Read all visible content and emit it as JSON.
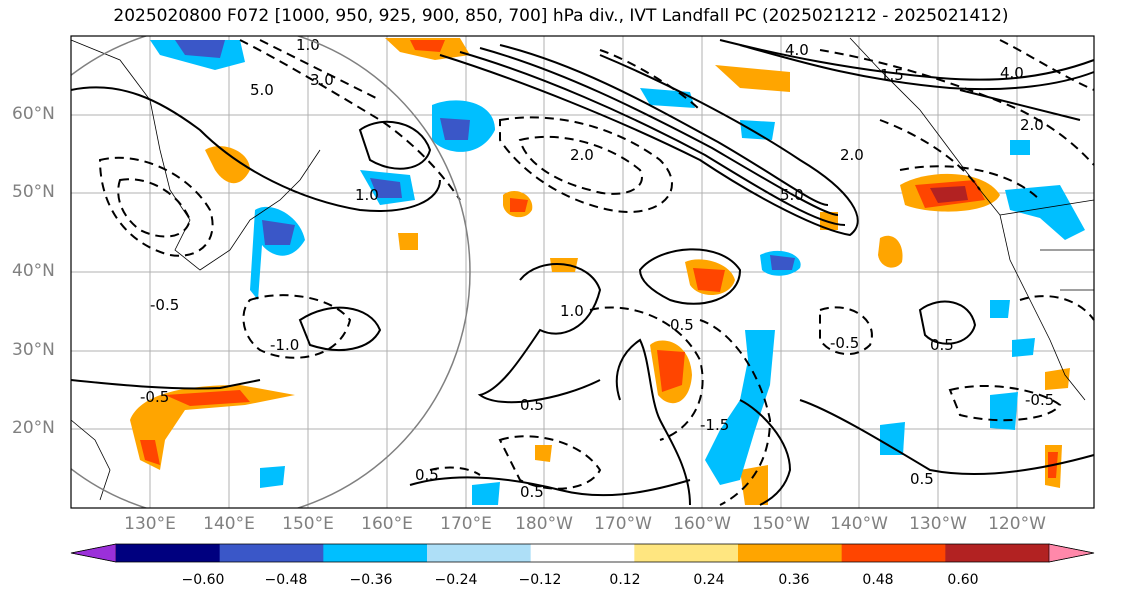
{
  "title": "2025020800 F072 [1000, 950, 925, 900, 850, 700] hPa div., IVT Landfall PC (2025021212 - 2025021412)",
  "map": {
    "lat_labels": [
      "60°N",
      "50°N",
      "40°N",
      "30°N",
      "20°N"
    ],
    "lon_labels": [
      "130°E",
      "140°E",
      "150°E",
      "160°E",
      "170°E",
      "180°W",
      "170°W",
      "160°W",
      "150°W",
      "140°W",
      "130°W",
      "120°W"
    ],
    "projection_extent": {
      "lon_range": [
        "120°E",
        "250°E"
      ],
      "lat_range": [
        10,
        70
      ]
    },
    "gridlines": true,
    "contour_labels": [
      "1.0",
      "2.0",
      "3.0",
      "4.0",
      "5.0",
      "0.5",
      "-0.5",
      "-1.0",
      "-1.5",
      "-2.0",
      "-3.0",
      "1.5",
      "2.0",
      "4.0",
      "5.0"
    ],
    "contours_note_solid_positive_dashed_negative": true
  },
  "colorbar": {
    "ticks": [
      "−0.60",
      "−0.48",
      "−0.36",
      "−0.24",
      "−0.12",
      "0.12",
      "0.24",
      "0.36",
      "0.48",
      "0.60"
    ],
    "colors": [
      "#9b30d9",
      "#00007f",
      "#3a57c8",
      "#00bfff",
      "#aedff7",
      "#ffffff",
      "#ffe680",
      "#ffa500",
      "#ff4500",
      "#b22222",
      "#ff88aa"
    ]
  }
}
